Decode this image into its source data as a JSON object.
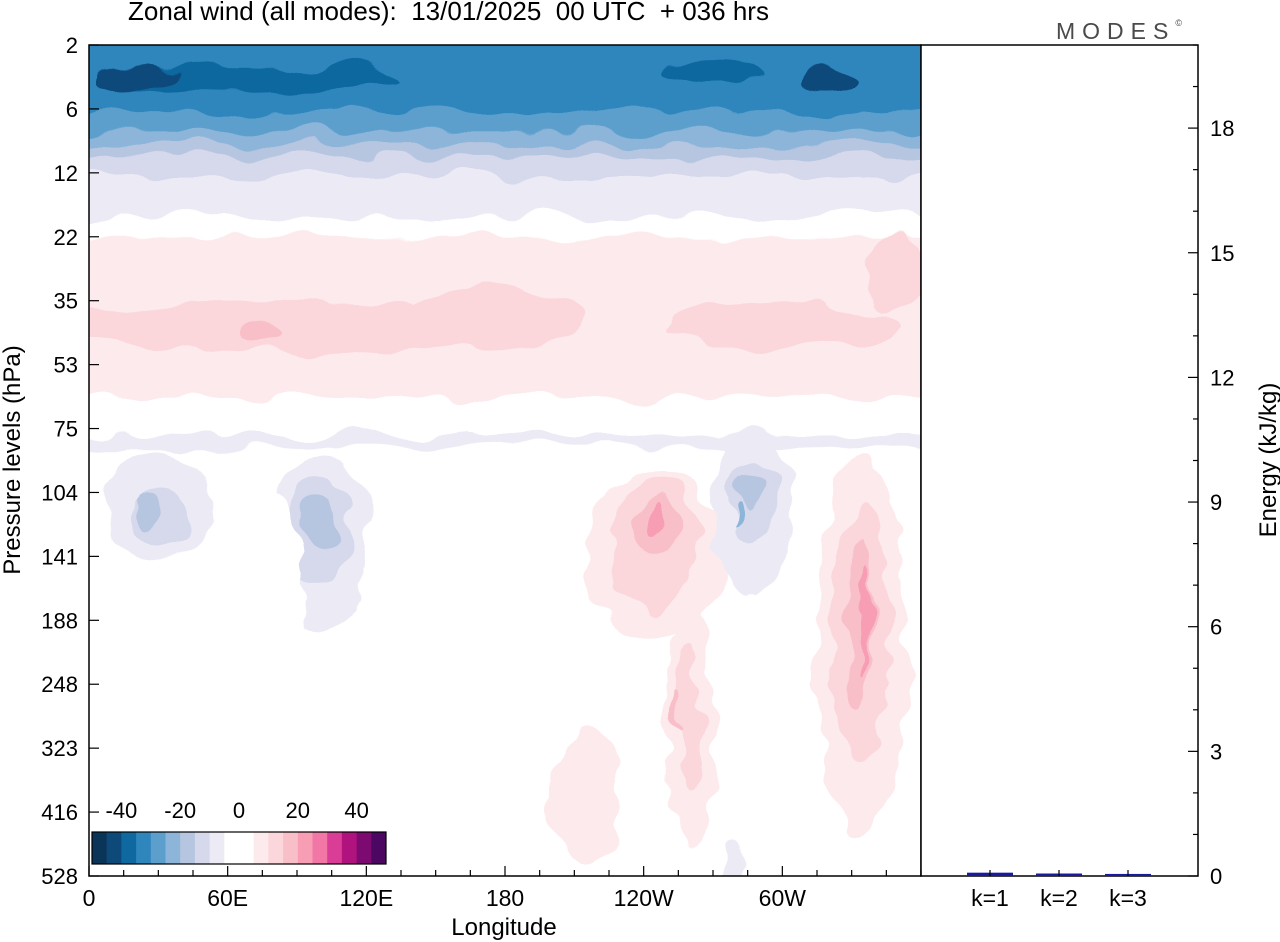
{
  "title": "Zonal wind (all modes):  13/01/2025  00 UTC  + 036 hrs",
  "logo": "MODES",
  "logo_mark": "©",
  "chart_data": [
    {
      "type": "heatmap",
      "title": "Zonal wind (all modes):  13/01/2025  00 UTC  + 036 hrs",
      "xlabel": "Longitude",
      "ylabel": "Pressure levels (hPa)",
      "x_ticks": [
        "0",
        "60E",
        "120E",
        "180",
        "120W",
        "60W"
      ],
      "x_tick_degrees": [
        0,
        60,
        120,
        180,
        240,
        300
      ],
      "xlim": [
        0,
        360
      ],
      "y_ticks": [
        "2",
        "6",
        "12",
        "22",
        "35",
        "53",
        "75",
        "104",
        "141",
        "188",
        "248",
        "323",
        "416",
        "528"
      ],
      "colorbar": {
        "labels": [
          "-40",
          "-20",
          "0",
          "20",
          "40"
        ],
        "range": [
          -50,
          50
        ],
        "step": 5,
        "colors": [
          "#0b3558",
          "#0d4a7a",
          "#0f689f",
          "#2f86bd",
          "#5d9fcc",
          "#8cb5d9",
          "#b6c5e0",
          "#d6d9ec",
          "#ecebf5",
          "#ffffff",
          "#ffffff",
          "#fdeaec",
          "#fbd6db",
          "#f9bfc9",
          "#f79eb5",
          "#f277a6",
          "#d93d95",
          "#b0127e",
          "#7d0a70",
          "#4b0762"
        ]
      },
      "features": [
        {
          "region": "upper stratosphere 2-12 hPa, all longitudes",
          "wind": -30
        },
        {
          "region": "22-53 hPa band, all longitudes",
          "wind": 8
        },
        {
          "region": "~104-141 hPa, 10E",
          "wind": -20
        },
        {
          "region": "~104-188 hPa, 95E",
          "wind": -20
        },
        {
          "region": "~104-188 hPa, 115W",
          "wind": 18
        },
        {
          "region": "~104-141 hPa, 75W",
          "wind": -25
        },
        {
          "region": "~141-323 hPa, 30W",
          "wind": 20
        },
        {
          "region": "~188-323 hPa, 130W",
          "wind": 15
        }
      ]
    },
    {
      "type": "bar",
      "ylabel": "Energy (kJ/kg)",
      "categories": [
        "k=1",
        "k=2",
        "k=3"
      ],
      "values": [
        0.08,
        0.06,
        0.05
      ],
      "ylim": [
        0,
        20
      ],
      "y_ticks": [
        "0",
        "3",
        "6",
        "9",
        "12",
        "15",
        "18"
      ],
      "y_tick_values": [
        0,
        3,
        6,
        9,
        12,
        15,
        18
      ],
      "bar_color": "#1a1aa0"
    }
  ]
}
